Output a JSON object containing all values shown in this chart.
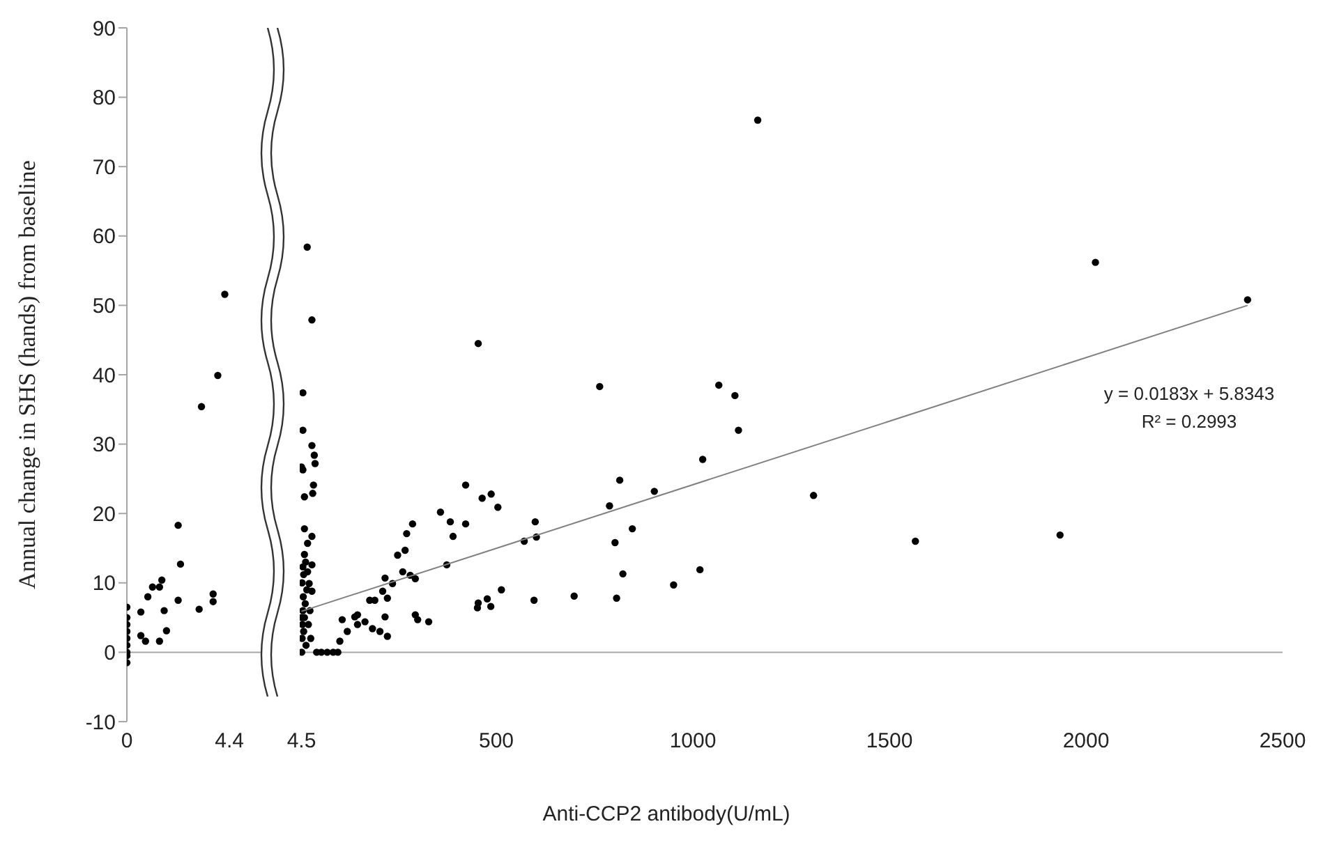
{
  "chart_data": [
    {
      "type": "scatter",
      "ylabel": "Annual change in SHS (hands) from baseline",
      "xlim": [
        0,
        5.8
      ],
      "xticks": [
        0,
        4.4
      ],
      "ylim": [
        -10,
        90
      ],
      "yticks": [
        -10,
        0,
        10,
        20,
        30,
        40,
        50,
        60,
        70,
        80,
        90
      ],
      "marker": "circle",
      "ref_lines": [
        {
          "axis": "y",
          "value": 0,
          "color": "#a6a6a6"
        }
      ],
      "series": [
        {
          "color": "#000000",
          "x": [
            0,
            0,
            0,
            0,
            0,
            0,
            0,
            0,
            0,
            0.6,
            0.9,
            1.1,
            1.4,
            1.5,
            0.6,
            0.8,
            1.4,
            1.6,
            1.7,
            2.2,
            2.3,
            2.2,
            3.1,
            3.2,
            3.7,
            3.7,
            3.9,
            4.2
          ],
          "values": [
            6.5,
            5,
            4,
            3,
            2,
            1,
            0,
            -0.5,
            -1.5,
            5.8,
            8,
            9.4,
            9.4,
            10.4,
            2.4,
            1.6,
            1.6,
            6,
            3.1,
            18.3,
            12.7,
            7.5,
            6.2,
            35.4,
            8.4,
            7.3,
            39.9,
            51.6
          ]
        }
      ]
    },
    {
      "type": "scatter",
      "xlabel": "Anti-CCP2 antibody(U/mL)",
      "xlim": [
        0,
        2500
      ],
      "xticks": [
        4.5,
        500,
        1000,
        1500,
        2000,
        2500
      ],
      "ylim": [
        -10,
        90
      ],
      "yticks": [
        -10,
        0,
        10,
        20,
        30,
        40,
        50,
        60,
        70,
        80,
        90
      ],
      "tick_labels": "x",
      "ref_lines": [
        {
          "axis": "y",
          "value": 0,
          "color": "#a6a6a6"
        }
      ],
      "annotations": [
        "y = 0.0183x + 5.8343",
        "R² = 0.2993"
      ],
      "series": [
        {
          "color": "#000000",
          "marker": "circle",
          "x": [
            19,
            31,
            8,
            8,
            31,
            37,
            39,
            4.5,
            8,
            12,
            33,
            35,
            12,
            31,
            20,
            12,
            8,
            10,
            20,
            24,
            31,
            31,
            5,
            6,
            7,
            8,
            9,
            10,
            12,
            14,
            16,
            18,
            6,
            5,
            22,
            26,
            15,
            28,
            43,
            55,
            70,
            85,
            97,
            102,
            121,
            140,
            108,
            147,
            178,
            191,
            211,
            223,
            217,
            204,
            223,
            185,
            147,
            166,
            236,
            217,
            249,
            268,
            262,
            281,
            294,
            272,
            287,
            294,
            300,
            328,
            358,
            383,
            390,
            422,
            422,
            454,
            464,
            487,
            504,
            374,
            454,
            452,
            477,
            486,
            513,
            571,
            599,
            602,
            596,
            1165,
            2024,
            2411,
            763,
            1066,
            1107,
            1116,
            1025,
            814,
            902,
            788,
            1307,
            846,
            802,
            1566,
            1934,
            822,
            1018,
            951,
            698,
            806
          ],
          "values": [
            58.4,
            47.9,
            37.4,
            32,
            29.8,
            28.4,
            27.2,
            26.7,
            26.3,
            22.4,
            22.9,
            24.1,
            17.8,
            16.7,
            15.7,
            14.1,
            12.3,
            11.2,
            11.6,
            9.9,
            8.8,
            12.6,
            0,
            2,
            4,
            6,
            8,
            3,
            5,
            7,
            1,
            9,
            10,
            5,
            4,
            6,
            13,
            2,
            0,
            0,
            0,
            0,
            0,
            1.6,
            3.0,
            5.1,
            4.7,
            5.4,
            7.5,
            7.5,
            8.8,
            7.8,
            5.1,
            3.0,
            2.3,
            3.4,
            4.0,
            4.4,
            9.9,
            10.7,
            14.0,
            14.7,
            11.6,
            11.1,
            10.6,
            17.1,
            18.5,
            5.4,
            4.7,
            4.4,
            20.2,
            18.8,
            16.7,
            18.5,
            24.1,
            44.5,
            22.2,
            22.8,
            20.9,
            12.6,
            7.1,
            6.4,
            7.7,
            6.6,
            9.0,
            16.0,
            18.8,
            16.6,
            7.5,
            76.7,
            56.2,
            50.8,
            38.3,
            38.5,
            37.0,
            32.0,
            27.8,
            24.8,
            23.2,
            21.1,
            22.6,
            17.8,
            15.8,
            16.0,
            16.9,
            11.3,
            11.9,
            9.7,
            8.1,
            7.8
          ]
        },
        {
          "type": "line",
          "color": "#808080",
          "marker": "none",
          "x": [
            4.5,
            2411
          ],
          "values": [
            5.9,
            50
          ]
        }
      ]
    }
  ]
}
